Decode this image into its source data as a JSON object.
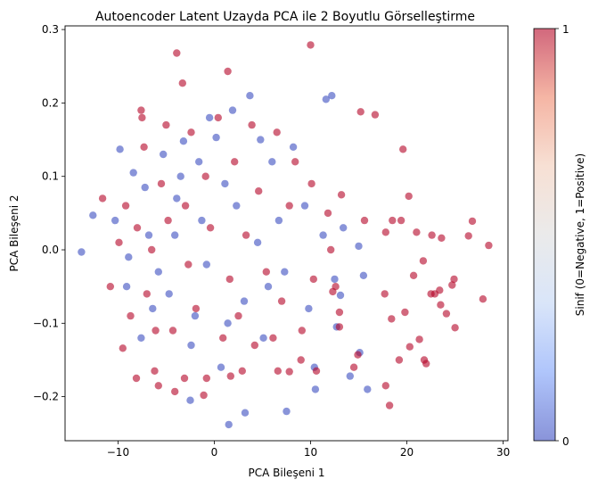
{
  "chart_data": {
    "type": "scatter",
    "title": "Autoencoder Latent Uzayda PCA ile 2 Boyutlu Görselleştirme",
    "xlabel": "PCA Bileşeni 1",
    "ylabel": "PCA Bileşeni 2",
    "xlim": [
      -15.5,
      30.5
    ],
    "ylim": [
      -0.26,
      0.305
    ],
    "xticks": [
      -10,
      0,
      10,
      20,
      30
    ],
    "yticks": [
      -0.2,
      -0.1,
      0.0,
      0.1,
      0.2,
      0.3
    ],
    "xtick_labels": [
      "−10",
      "0",
      "10",
      "20",
      "30"
    ],
    "ytick_labels": [
      "−0.2",
      "−0.1",
      "0.0",
      "0.1",
      "0.2",
      "0.3"
    ],
    "grid": false,
    "colorbar": {
      "label": "Sinif (0=Negative, 1=Positive)",
      "ticks": [
        0,
        1
      ],
      "tick_labels": [
        "0",
        "1"
      ],
      "colormap": "coolwarm",
      "colors": [
        "#3b4cc0",
        "#7b9ff9",
        "#c0d4f5",
        "#dddddd",
        "#f2cbb7",
        "#ee8468",
        "#b40426"
      ]
    },
    "point_alpha": 0.6,
    "series": [
      {
        "class": 0,
        "color": "#3b4cc0",
        "points": [
          [
            -13.8,
            -0.003
          ],
          [
            -12.6,
            0.047
          ],
          [
            -9.8,
            0.137
          ],
          [
            -9.1,
            -0.05
          ],
          [
            -8.4,
            0.105
          ],
          [
            -7.6,
            -0.12
          ],
          [
            -6.8,
            0.02
          ],
          [
            -5.3,
            0.13
          ],
          [
            -4.7,
            -0.06
          ],
          [
            -3.9,
            0.07
          ],
          [
            -3.2,
            0.148
          ],
          [
            -2.4,
            -0.13
          ],
          [
            -1.6,
            0.12
          ],
          [
            -0.8,
            -0.02
          ],
          [
            0.2,
            0.153
          ],
          [
            1.4,
            -0.1
          ],
          [
            1.9,
            0.19
          ],
          [
            3.7,
            0.21
          ],
          [
            -2.5,
            -0.205
          ],
          [
            1.5,
            -0.238
          ],
          [
            3.2,
            -0.222
          ],
          [
            7.5,
            -0.22
          ],
          [
            10.5,
            -0.19
          ],
          [
            12.2,
            0.21
          ],
          [
            11.6,
            0.205
          ],
          [
            12.7,
            -0.105
          ],
          [
            13.1,
            -0.062
          ],
          [
            15.0,
            0.005
          ],
          [
            15.5,
            -0.035
          ],
          [
            15.1,
            -0.14
          ],
          [
            15.9,
            -0.19
          ],
          [
            10.4,
            -0.16
          ],
          [
            14.1,
            -0.172
          ],
          [
            6.0,
            0.12
          ],
          [
            8.2,
            0.14
          ],
          [
            5.1,
            -0.12
          ],
          [
            -6.4,
            -0.08
          ],
          [
            -10.3,
            0.04
          ],
          [
            -7.2,
            0.085
          ],
          [
            -4.1,
            0.02
          ],
          [
            2.3,
            0.06
          ],
          [
            4.5,
            0.01
          ],
          [
            6.7,
            0.04
          ],
          [
            7.3,
            -0.03
          ],
          [
            3.1,
            -0.07
          ],
          [
            -1.3,
            0.04
          ],
          [
            -5.8,
            -0.03
          ],
          [
            0.7,
            -0.16
          ],
          [
            -3.5,
            0.1
          ],
          [
            9.4,
            0.06
          ],
          [
            11.3,
            0.02
          ],
          [
            12.5,
            -0.04
          ],
          [
            -8.9,
            -0.01
          ],
          [
            5.6,
            -0.05
          ],
          [
            1.1,
            0.09
          ],
          [
            -2.0,
            -0.09
          ],
          [
            13.4,
            0.03
          ],
          [
            9.8,
            -0.08
          ],
          [
            -0.5,
            0.18
          ],
          [
            4.8,
            0.15
          ]
        ]
      },
      {
        "class": 1,
        "color": "#b40426",
        "points": [
          [
            -3.9,
            0.268
          ],
          [
            10.0,
            0.279
          ],
          [
            1.4,
            0.243
          ],
          [
            -3.3,
            0.227
          ],
          [
            -7.6,
            0.19
          ],
          [
            -7.5,
            0.18
          ],
          [
            15.2,
            0.188
          ],
          [
            16.7,
            0.184
          ],
          [
            19.6,
            0.137
          ],
          [
            20.2,
            0.073
          ],
          [
            13.2,
            0.075
          ],
          [
            15.6,
            0.04
          ],
          [
            18.5,
            0.04
          ],
          [
            19.4,
            0.04
          ],
          [
            22.6,
            0.02
          ],
          [
            26.8,
            0.039
          ],
          [
            28.5,
            0.006
          ],
          [
            26.4,
            0.019
          ],
          [
            23.6,
            0.016
          ],
          [
            21.0,
            0.024
          ],
          [
            17.8,
            0.024
          ],
          [
            22.5,
            -0.06
          ],
          [
            23.5,
            -0.075
          ],
          [
            24.7,
            -0.048
          ],
          [
            24.9,
            -0.04
          ],
          [
            23.4,
            -0.055
          ],
          [
            22.9,
            -0.06
          ],
          [
            21.7,
            -0.015
          ],
          [
            20.7,
            -0.035
          ],
          [
            17.7,
            -0.06
          ],
          [
            19.8,
            -0.085
          ],
          [
            25.0,
            -0.106
          ],
          [
            27.9,
            -0.067
          ],
          [
            24.1,
            -0.087
          ],
          [
            18.4,
            -0.094
          ],
          [
            21.3,
            -0.122
          ],
          [
            20.3,
            -0.132
          ],
          [
            21.8,
            -0.15
          ],
          [
            22.0,
            -0.155
          ],
          [
            19.2,
            -0.15
          ],
          [
            17.8,
            -0.185
          ],
          [
            18.2,
            -0.212
          ],
          [
            14.9,
            -0.143
          ],
          [
            14.5,
            -0.16
          ],
          [
            13.0,
            -0.105
          ],
          [
            13.0,
            -0.085
          ],
          [
            12.3,
            -0.057
          ],
          [
            12.6,
            -0.05
          ],
          [
            -9.5,
            -0.134
          ],
          [
            -8.1,
            -0.175
          ],
          [
            -6.2,
            -0.165
          ],
          [
            -5.8,
            -0.185
          ],
          [
            -4.1,
            -0.193
          ],
          [
            -3.1,
            -0.175
          ],
          [
            -1.1,
            -0.198
          ],
          [
            -0.8,
            -0.175
          ],
          [
            1.7,
            -0.172
          ],
          [
            2.9,
            -0.165
          ],
          [
            6.6,
            -0.165
          ],
          [
            7.8,
            -0.166
          ],
          [
            9.0,
            -0.15
          ],
          [
            10.6,
            -0.165
          ],
          [
            -9.2,
            0.06
          ],
          [
            -11.6,
            0.07
          ],
          [
            -10.8,
            -0.05
          ],
          [
            -8.7,
            -0.09
          ],
          [
            -7.3,
            0.14
          ],
          [
            -5.0,
            0.17
          ],
          [
            -2.4,
            0.16
          ],
          [
            0.4,
            0.18
          ],
          [
            3.9,
            0.17
          ],
          [
            6.5,
            0.16
          ],
          [
            8.4,
            0.12
          ],
          [
            10.1,
            0.09
          ],
          [
            11.8,
            0.05
          ],
          [
            12.1,
            0.0
          ],
          [
            10.3,
            -0.04
          ],
          [
            9.1,
            -0.11
          ],
          [
            7.0,
            -0.07
          ],
          [
            5.4,
            -0.03
          ],
          [
            3.3,
            0.02
          ],
          [
            1.6,
            -0.04
          ],
          [
            -0.4,
            0.03
          ],
          [
            -2.7,
            -0.02
          ],
          [
            -4.8,
            0.04
          ],
          [
            -6.5,
            0.0
          ],
          [
            -8.0,
            0.03
          ],
          [
            -9.9,
            0.01
          ],
          [
            -7.0,
            -0.06
          ],
          [
            -4.3,
            -0.11
          ],
          [
            -1.9,
            -0.08
          ],
          [
            0.9,
            -0.12
          ],
          [
            2.5,
            -0.09
          ],
          [
            4.2,
            -0.13
          ],
          [
            6.1,
            -0.12
          ],
          [
            -3.0,
            0.06
          ],
          [
            -0.9,
            0.1
          ],
          [
            2.1,
            0.12
          ],
          [
            4.6,
            0.08
          ],
          [
            7.8,
            0.06
          ],
          [
            -5.5,
            0.09
          ],
          [
            -6.1,
            -0.11
          ]
        ]
      }
    ]
  }
}
